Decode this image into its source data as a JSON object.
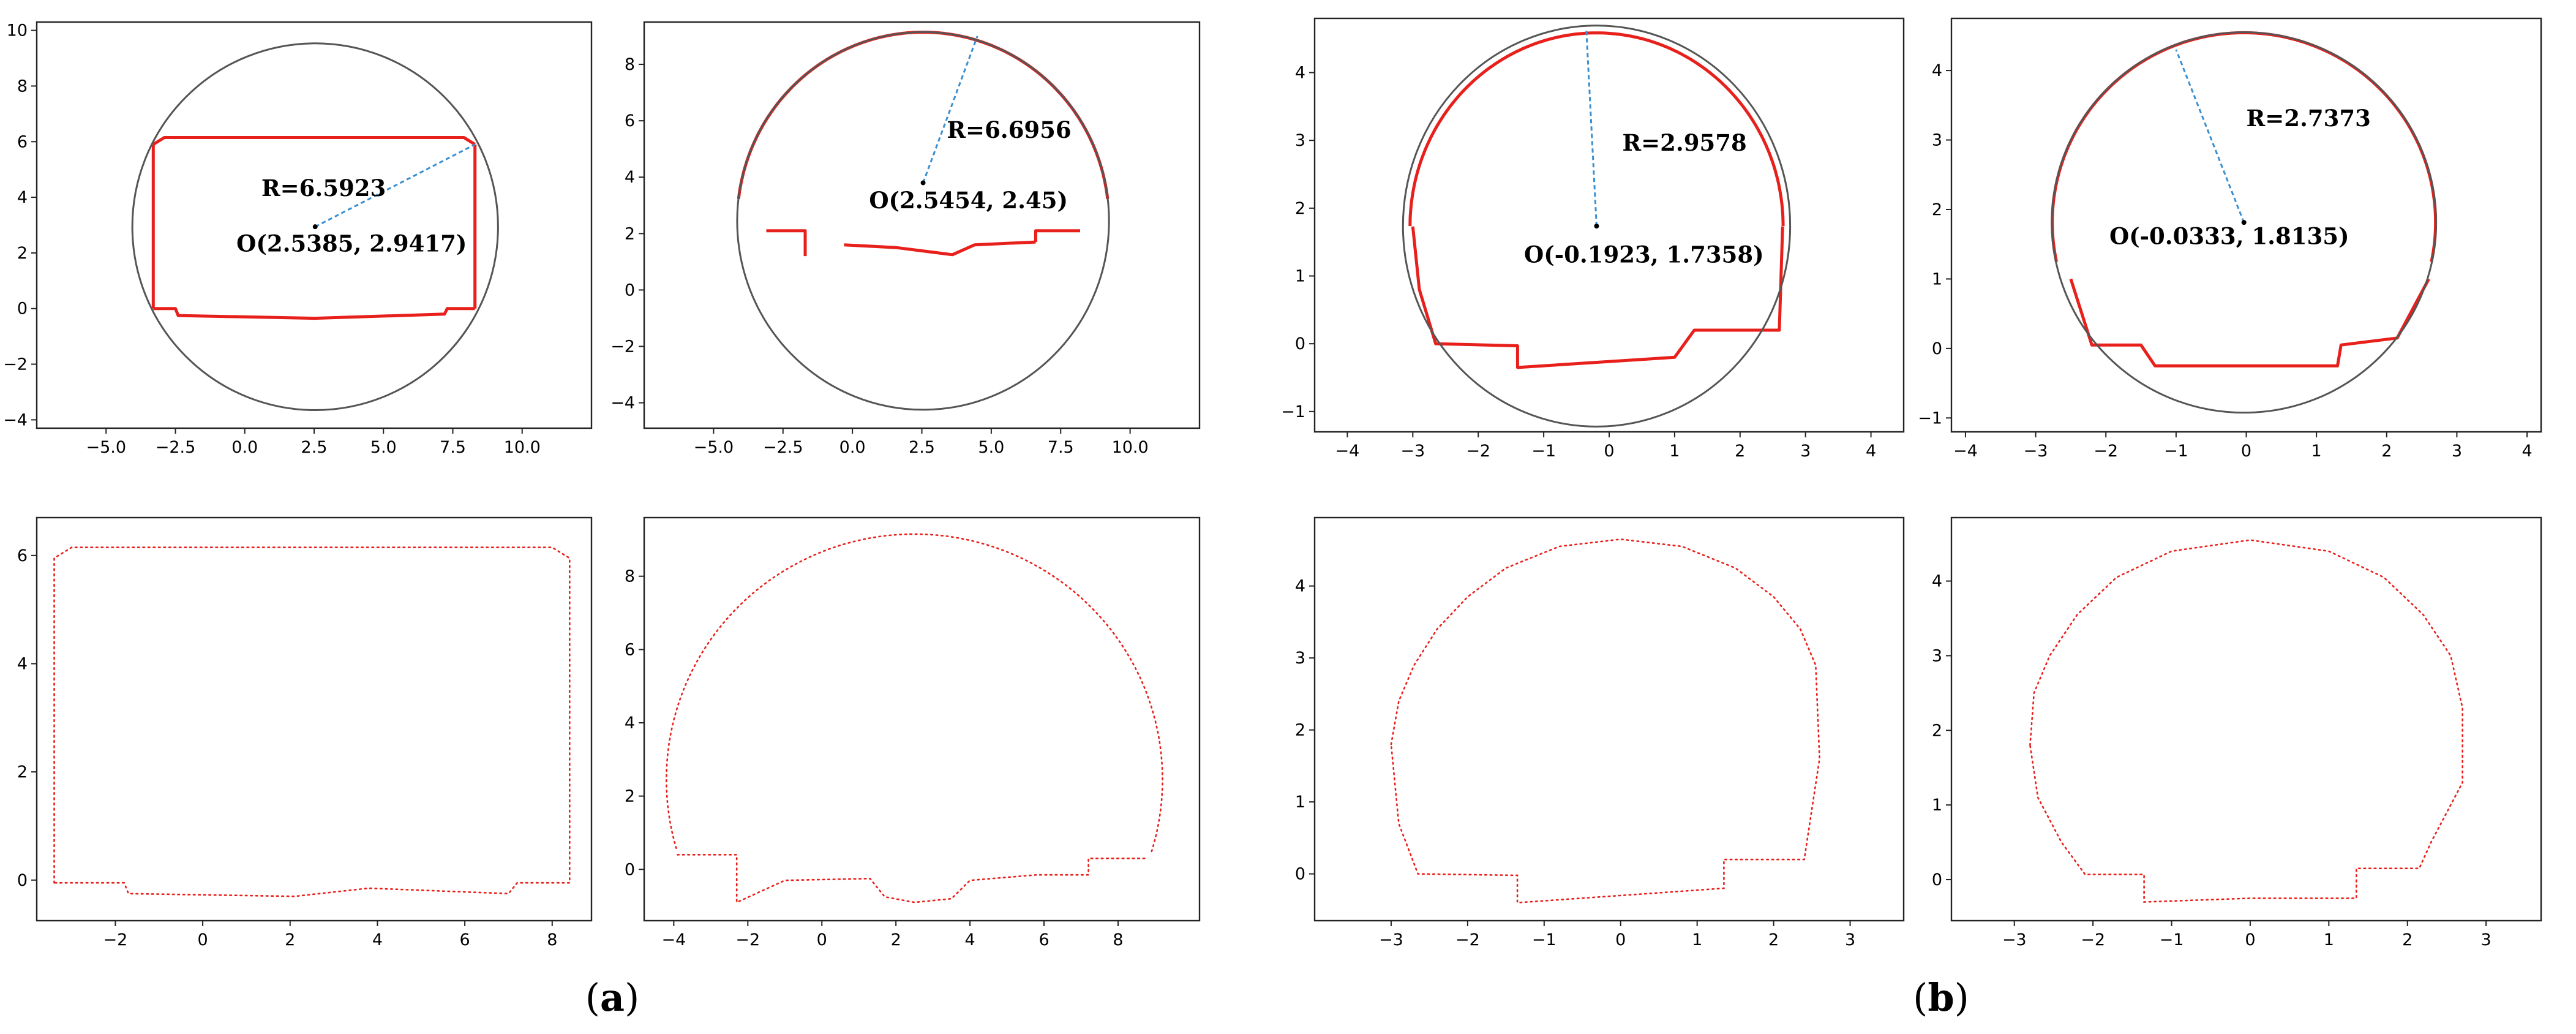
{
  "figure": {
    "caption_a": "a",
    "caption_b": "b"
  },
  "chart_data": [
    {
      "type": "scatter",
      "panel": "a-top-left",
      "xlim": [
        -7.5,
        12.5
      ],
      "ylim": [
        -4.3,
        10.3
      ],
      "xticks": [
        -5.0,
        -2.5,
        0.0,
        2.5,
        5.0,
        7.5,
        10.0
      ],
      "yticks": [
        -4,
        -2,
        0,
        2,
        4,
        6,
        8,
        10
      ],
      "tick_decimals_x": 1,
      "tick_decimals_y": 0,
      "circle": {
        "cx": 2.5385,
        "cy": 2.9417,
        "r": 6.5923
      },
      "radius_line": [
        [
          2.5385,
          2.9417
        ],
        [
          8.3,
          5.9
        ]
      ],
      "annotations": [
        {
          "text": "R=6.5923",
          "x": 0.6,
          "y": 4.05
        },
        {
          "text": "O(2.5385, 2.9417)",
          "x": -0.3,
          "y": 2.05
        }
      ],
      "series": [
        {
          "points": [
            [
              -3.3,
              5.9
            ],
            [
              -2.9,
              6.15
            ],
            [
              7.9,
              6.15
            ],
            [
              8.3,
              5.9
            ]
          ]
        },
        {
          "points": [
            [
              -3.3,
              5.9
            ],
            [
              -3.3,
              0.0
            ]
          ]
        },
        {
          "points": [
            [
              8.3,
              5.9
            ],
            [
              8.3,
              0.0
            ]
          ]
        },
        {
          "points": [
            [
              -3.3,
              0.0
            ],
            [
              -2.5,
              0.0
            ],
            [
              -2.4,
              -0.25
            ],
            [
              2.5,
              -0.35
            ],
            [
              7.2,
              -0.2
            ],
            [
              7.3,
              0.0
            ],
            [
              8.3,
              0.0
            ]
          ]
        }
      ]
    },
    {
      "type": "scatter",
      "panel": "a-top-middle",
      "xlim": [
        -7.5,
        12.5
      ],
      "ylim": [
        -4.9,
        9.5
      ],
      "xticks": [
        -5.0,
        -2.5,
        0.0,
        2.5,
        5.0,
        7.5,
        10.0
      ],
      "yticks": [
        -4,
        -2,
        0,
        2,
        4,
        6,
        8
      ],
      "tick_decimals_x": 1,
      "tick_decimals_y": 0,
      "circle": {
        "cx": 2.5454,
        "cy": 2.45,
        "r": 6.6956
      },
      "radius_line": [
        [
          2.5454,
          3.8
        ],
        [
          4.5,
          9.0
        ]
      ],
      "annotations": [
        {
          "text": "R=6.6956",
          "x": 3.4,
          "y": 5.4
        },
        {
          "text": "O(2.5454, 2.45)",
          "x": 0.6,
          "y": 2.9
        }
      ],
      "series": [
        {
          "arc": {
            "cx": 2.5454,
            "cy": 2.45,
            "r": 6.69,
            "a0": 6.7,
            "a1": 173.3
          }
        },
        {
          "points": [
            [
              -3.1,
              2.1
            ],
            [
              -1.7,
              2.1
            ],
            [
              -1.7,
              1.2
            ]
          ]
        },
        {
          "points": [
            [
              -0.3,
              1.6
            ],
            [
              1.6,
              1.5
            ],
            [
              3.6,
              1.25
            ],
            [
              4.4,
              1.6
            ],
            [
              6.6,
              1.7
            ]
          ]
        },
        {
          "points": [
            [
              6.6,
              1.7
            ],
            [
              6.6,
              2.1
            ],
            [
              8.2,
              2.1
            ]
          ]
        }
      ]
    },
    {
      "type": "scatter",
      "panel": "a-bottom-left",
      "xlim": [
        -4.5,
        4.5
      ],
      "ylim": [
        -1.3,
        4.8
      ],
      "xticks": [
        -4,
        -3,
        -2,
        -1,
        0,
        1,
        2,
        3,
        4
      ],
      "yticks": [
        -1,
        0,
        1,
        2,
        3,
        4
      ],
      "tick_decimals_x": 0,
      "tick_decimals_y": 0,
      "circle": {
        "cx": -0.1923,
        "cy": 1.7358,
        "r": 2.9578
      },
      "radius_line": [
        [
          -0.1923,
          1.7358
        ],
        [
          -0.35,
          4.65
        ]
      ],
      "annotations": [
        {
          "text": "R=2.9578",
          "x": 0.2,
          "y": 2.85
        },
        {
          "text": "O(-0.1923, 1.7358)",
          "x": -1.3,
          "y": 1.2
        }
      ],
      "series": [
        {
          "arc": {
            "cx": -0.1923,
            "cy": 1.7358,
            "r": 2.85,
            "a0": 0,
            "a1": 180
          }
        },
        {
          "points": [
            [
              -3.0,
              1.73
            ],
            [
              -2.9,
              0.8
            ],
            [
              -2.65,
              0.0
            ],
            [
              -1.4,
              -0.03
            ],
            [
              -1.4,
              -0.35
            ],
            [
              1.0,
              -0.2
            ],
            [
              1.3,
              0.2
            ],
            [
              2.6,
              0.2
            ],
            [
              2.65,
              1.73
            ]
          ]
        }
      ]
    },
    {
      "type": "scatter",
      "panel": "a-bottom-middle",
      "xlim": [
        -4.2,
        4.2
      ],
      "ylim": [
        -1.2,
        4.75
      ],
      "xticks": [
        -4,
        -3,
        -2,
        -1,
        0,
        1,
        2,
        3,
        4
      ],
      "yticks": [
        -1,
        0,
        1,
        2,
        3,
        4
      ],
      "tick_decimals_x": 0,
      "tick_decimals_y": 0,
      "circle": {
        "cx": -0.0333,
        "cy": 1.8135,
        "r": 2.7373
      },
      "radius_line": [
        [
          -0.0333,
          1.8135
        ],
        [
          -1.0,
          4.3
        ]
      ],
      "annotations": [
        {
          "text": "R=2.7373",
          "x": 0.0,
          "y": 3.2
        },
        {
          "text": "O(-0.0333, 1.8135)",
          "x": -1.95,
          "y": 1.5
        }
      ],
      "series": [
        {
          "arc": {
            "cx": -0.0333,
            "cy": 1.8135,
            "r": 2.73,
            "a0": -12,
            "a1": 192
          }
        },
        {
          "points": [
            [
              -2.5,
              1.0
            ],
            [
              -2.2,
              0.05
            ],
            [
              -1.5,
              0.05
            ],
            [
              -1.3,
              -0.25
            ],
            [
              1.3,
              -0.25
            ],
            [
              1.35,
              0.05
            ],
            [
              2.15,
              0.15
            ],
            [
              2.6,
              1.0
            ]
          ]
        }
      ]
    },
    {
      "type": "scatter",
      "panel": "b-top-left",
      "xlim": [
        -3.8,
        8.9
      ],
      "ylim": [
        -0.75,
        6.7
      ],
      "xticks": [
        -2,
        0,
        2,
        4,
        6,
        8
      ],
      "yticks": [
        0,
        2,
        4,
        6
      ],
      "tick_decimals_x": 0,
      "tick_decimals_y": 0,
      "series": [
        {
          "points": [
            [
              -3.4,
              -0.05
            ],
            [
              -3.4,
              5.95
            ],
            [
              -3.0,
              6.15
            ],
            [
              8.0,
              6.15
            ],
            [
              8.4,
              5.95
            ],
            [
              8.4,
              -0.05
            ],
            [
              7.2,
              -0.05
            ],
            [
              7.0,
              -0.25
            ],
            [
              3.8,
              -0.15
            ],
            [
              2.1,
              -0.3
            ],
            [
              -1.7,
              -0.25
            ],
            [
              -1.8,
              -0.05
            ],
            [
              -3.4,
              -0.05
            ]
          ]
        }
      ]
    },
    {
      "type": "scatter",
      "panel": "b-top-right",
      "xlim": [
        -4.8,
        10.2
      ],
      "ylim": [
        -1.4,
        9.6
      ],
      "xticks": [
        -4,
        -2,
        0,
        2,
        4,
        6,
        8
      ],
      "yticks": [
        0,
        2,
        4,
        6,
        8
      ],
      "tick_decimals_x": 0,
      "tick_decimals_y": 0,
      "series": [
        {
          "arc": {
            "cx": 2.5,
            "cy": 2.45,
            "r": 6.7,
            "a0": -17,
            "a1": 197
          }
        },
        {
          "points": [
            [
              -3.9,
              0.4
            ],
            [
              -2.3,
              0.4
            ],
            [
              -2.3,
              -0.9
            ],
            [
              -1.0,
              -0.3
            ],
            [
              1.3,
              -0.25
            ],
            [
              1.7,
              -0.75
            ],
            [
              2.5,
              -0.9
            ],
            [
              3.5,
              -0.8
            ],
            [
              4.0,
              -0.3
            ],
            [
              5.8,
              -0.15
            ],
            [
              7.2,
              -0.15
            ],
            [
              7.2,
              0.3
            ],
            [
              8.8,
              0.3
            ]
          ]
        }
      ]
    },
    {
      "type": "scatter",
      "panel": "b-bottom-left",
      "xlim": [
        -4.0,
        3.7
      ],
      "ylim": [
        -0.65,
        4.95
      ],
      "xticks": [
        -3,
        -2,
        -1,
        0,
        1,
        2,
        3
      ],
      "yticks": [
        0,
        1,
        2,
        3,
        4
      ],
      "tick_decimals_x": 0,
      "tick_decimals_y": 0,
      "series": [
        {
          "points": [
            [
              -3.0,
              1.8
            ],
            [
              -2.9,
              2.4
            ],
            [
              -2.7,
              2.9
            ],
            [
              -2.4,
              3.4
            ],
            [
              -2.0,
              3.85
            ],
            [
              -1.5,
              4.25
            ],
            [
              -0.8,
              4.55
            ],
            [
              0.0,
              4.65
            ],
            [
              0.8,
              4.55
            ],
            [
              1.5,
              4.25
            ],
            [
              2.0,
              3.85
            ],
            [
              2.35,
              3.4
            ],
            [
              2.55,
              2.9
            ],
            [
              2.6,
              1.6
            ],
            [
              2.4,
              0.2
            ],
            [
              1.35,
              0.2
            ],
            [
              1.35,
              -0.2
            ],
            [
              0.0,
              -0.3
            ],
            [
              -1.35,
              -0.4
            ],
            [
              -1.35,
              -0.02
            ],
            [
              -2.65,
              0.0
            ],
            [
              -2.9,
              0.7
            ],
            [
              -3.0,
              1.8
            ]
          ]
        }
      ]
    },
    {
      "type": "scatter",
      "panel": "b-bottom-right",
      "xlim": [
        -3.8,
        3.7
      ],
      "ylim": [
        -0.55,
        4.85
      ],
      "xticks": [
        -3,
        -2,
        -1,
        0,
        1,
        2,
        3
      ],
      "yticks": [
        0,
        1,
        2,
        3,
        4
      ],
      "tick_decimals_x": 0,
      "tick_decimals_y": 0,
      "series": [
        {
          "points": [
            [
              -2.8,
              1.8
            ],
            [
              -2.75,
              2.5
            ],
            [
              -2.55,
              3.0
            ],
            [
              -2.2,
              3.55
            ],
            [
              -1.7,
              4.05
            ],
            [
              -1.0,
              4.4
            ],
            [
              0.0,
              4.55
            ],
            [
              1.0,
              4.4
            ],
            [
              1.7,
              4.05
            ],
            [
              2.2,
              3.55
            ],
            [
              2.55,
              3.0
            ],
            [
              2.7,
              2.3
            ],
            [
              2.7,
              1.3
            ],
            [
              2.3,
              0.5
            ],
            [
              2.15,
              0.15
            ],
            [
              1.35,
              0.15
            ],
            [
              1.35,
              -0.25
            ],
            [
              0.0,
              -0.25
            ],
            [
              -1.35,
              -0.3
            ],
            [
              -1.35,
              0.07
            ],
            [
              -2.1,
              0.07
            ],
            [
              -2.4,
              0.5
            ],
            [
              -2.7,
              1.1
            ],
            [
              -2.8,
              1.8
            ]
          ]
        }
      ]
    }
  ]
}
